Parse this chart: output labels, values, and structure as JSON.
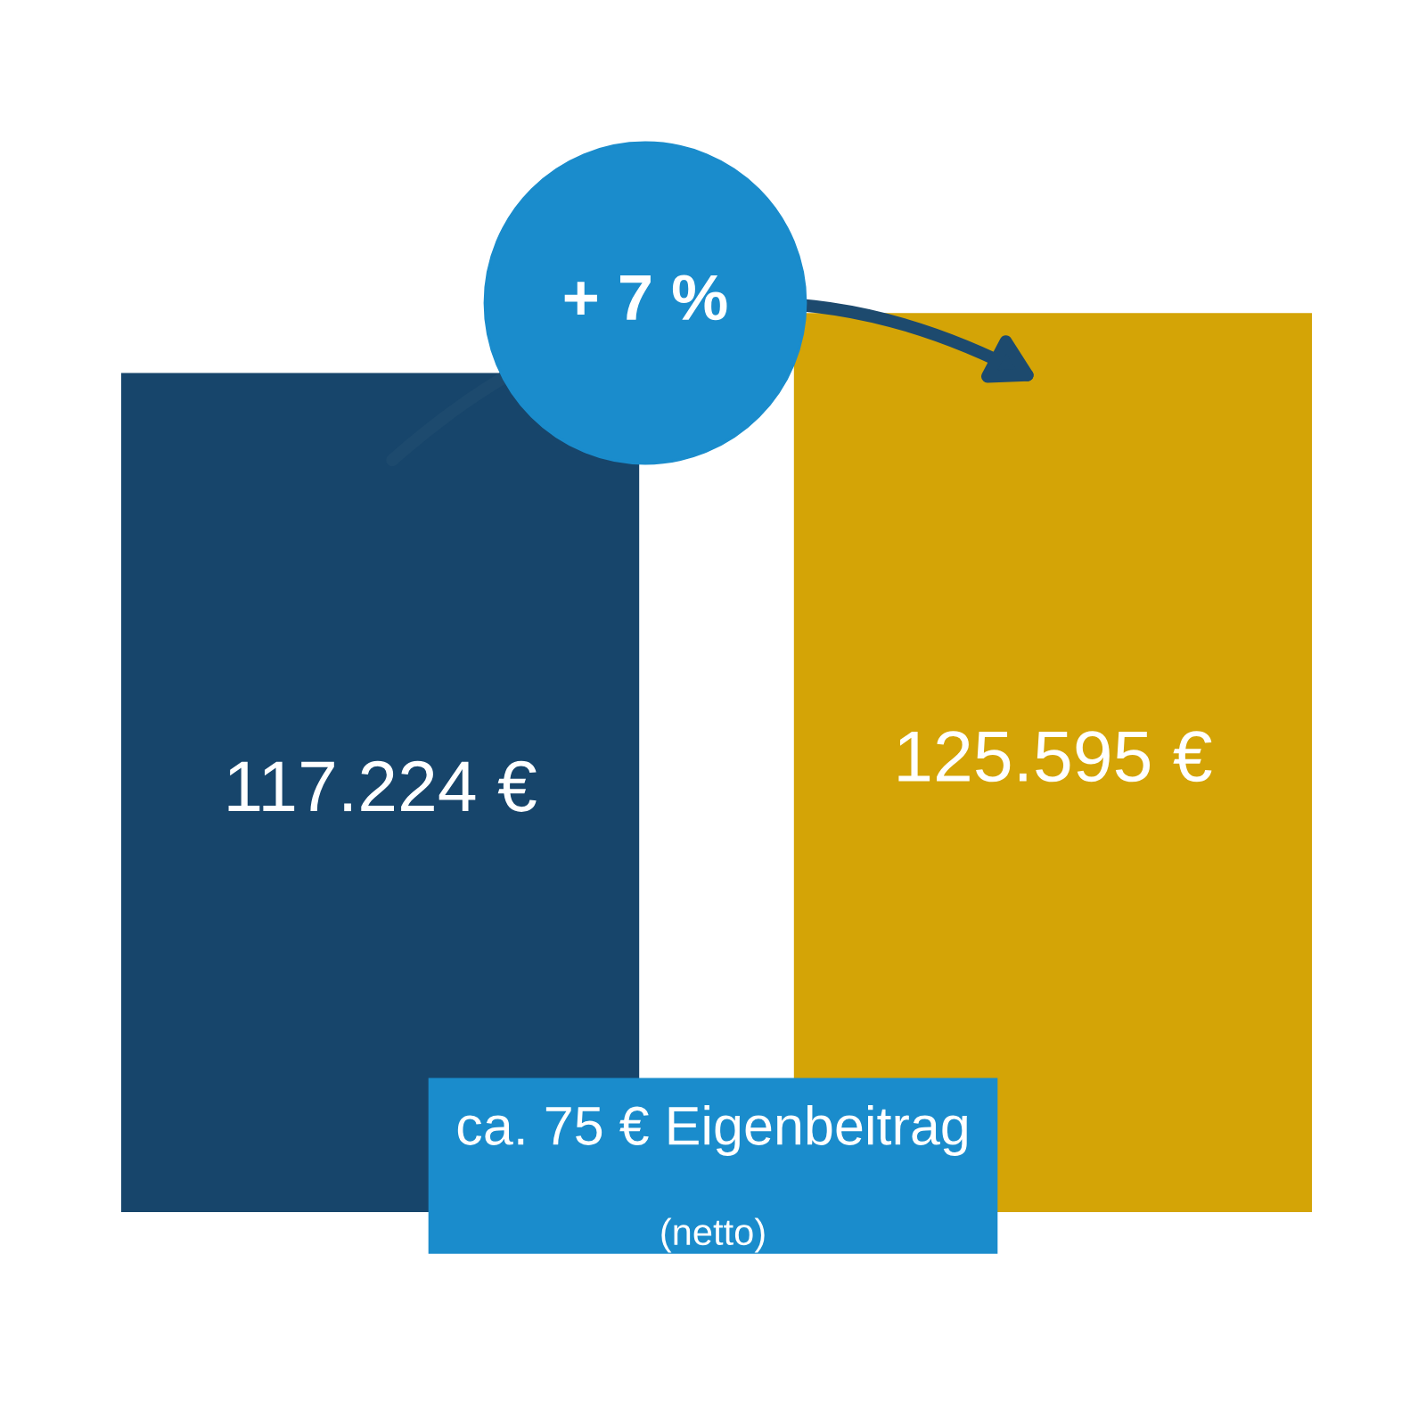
{
  "chart_data": {
    "type": "bar",
    "categories": [
      null,
      null
    ],
    "values": [
      117224,
      125595
    ],
    "colors": [
      "#17456b",
      "#d4a406"
    ],
    "value_labels": [
      "117.224 €",
      "125.595 €"
    ],
    "grid": false,
    "legend": false,
    "annotations": [
      "+ 7 %",
      "ca. 75 € Eigenbeitrag",
      "(netto)"
    ]
  }
}
